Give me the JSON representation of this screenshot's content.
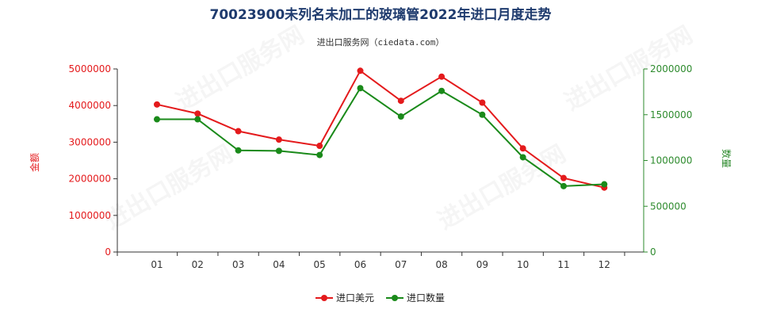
{
  "chart_data": {
    "type": "line",
    "title": "70023900未列名未加工的玻璃管2022年进口月度走势",
    "subtitle": "进出口服务网（ciedata.com）",
    "categories": [
      "01",
      "02",
      "03",
      "04",
      "05",
      "06",
      "07",
      "08",
      "09",
      "10",
      "11",
      "12"
    ],
    "y_left": {
      "label": "金额",
      "range": [
        0,
        5000000
      ],
      "ticks": [
        "0",
        "1000000",
        "2000000",
        "3000000",
        "4000000",
        "5000000"
      ],
      "color": "#e41a1c"
    },
    "y_right": {
      "label": "数量",
      "range": [
        0,
        2000000
      ],
      "ticks": [
        "0",
        "500000",
        "1000000",
        "1500000",
        "2000000"
      ],
      "color": "#2e8b2e"
    },
    "series": [
      {
        "name": "进口美元",
        "axis": "left",
        "color": "#e41a1c",
        "values": [
          4030000,
          3780000,
          3300000,
          3070000,
          2900000,
          4950000,
          4130000,
          4790000,
          4080000,
          2830000,
          2020000,
          1760000
        ]
      },
      {
        "name": "进口数量",
        "axis": "right",
        "color": "#1a8a1a",
        "values": [
          1450000,
          1450000,
          1110000,
          1105000,
          1060000,
          1790000,
          1480000,
          1760000,
          1500000,
          1035000,
          720000,
          740000
        ]
      }
    ],
    "legend_position": "bottom",
    "grid": false,
    "watermark": "进出口服务网"
  }
}
